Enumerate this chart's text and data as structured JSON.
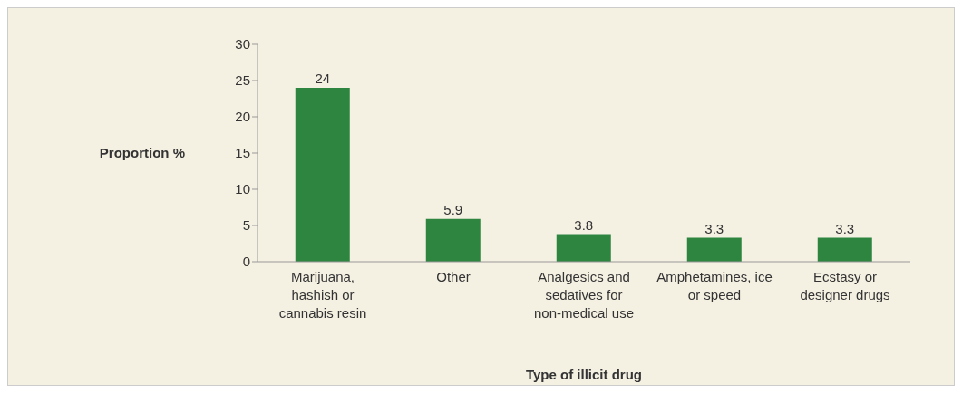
{
  "chart_data": {
    "type": "bar",
    "xlabel": "Type of illicit drug",
    "ylabel": "Proportion %",
    "categories": [
      "Marijuana, hashish or cannabis resin",
      "Other",
      "Analgesics and sedatives for non-medical use",
      "Amphetamines, ice or speed",
      "Ecstasy or designer drugs"
    ],
    "values": [
      24,
      5.9,
      3.8,
      3.3,
      3.3
    ],
    "color": "#2e8540",
    "ylim": [
      0,
      30
    ],
    "yticks": [
      0,
      5,
      10,
      15,
      20,
      25,
      30
    ],
    "grid": false,
    "data_labels": true
  }
}
